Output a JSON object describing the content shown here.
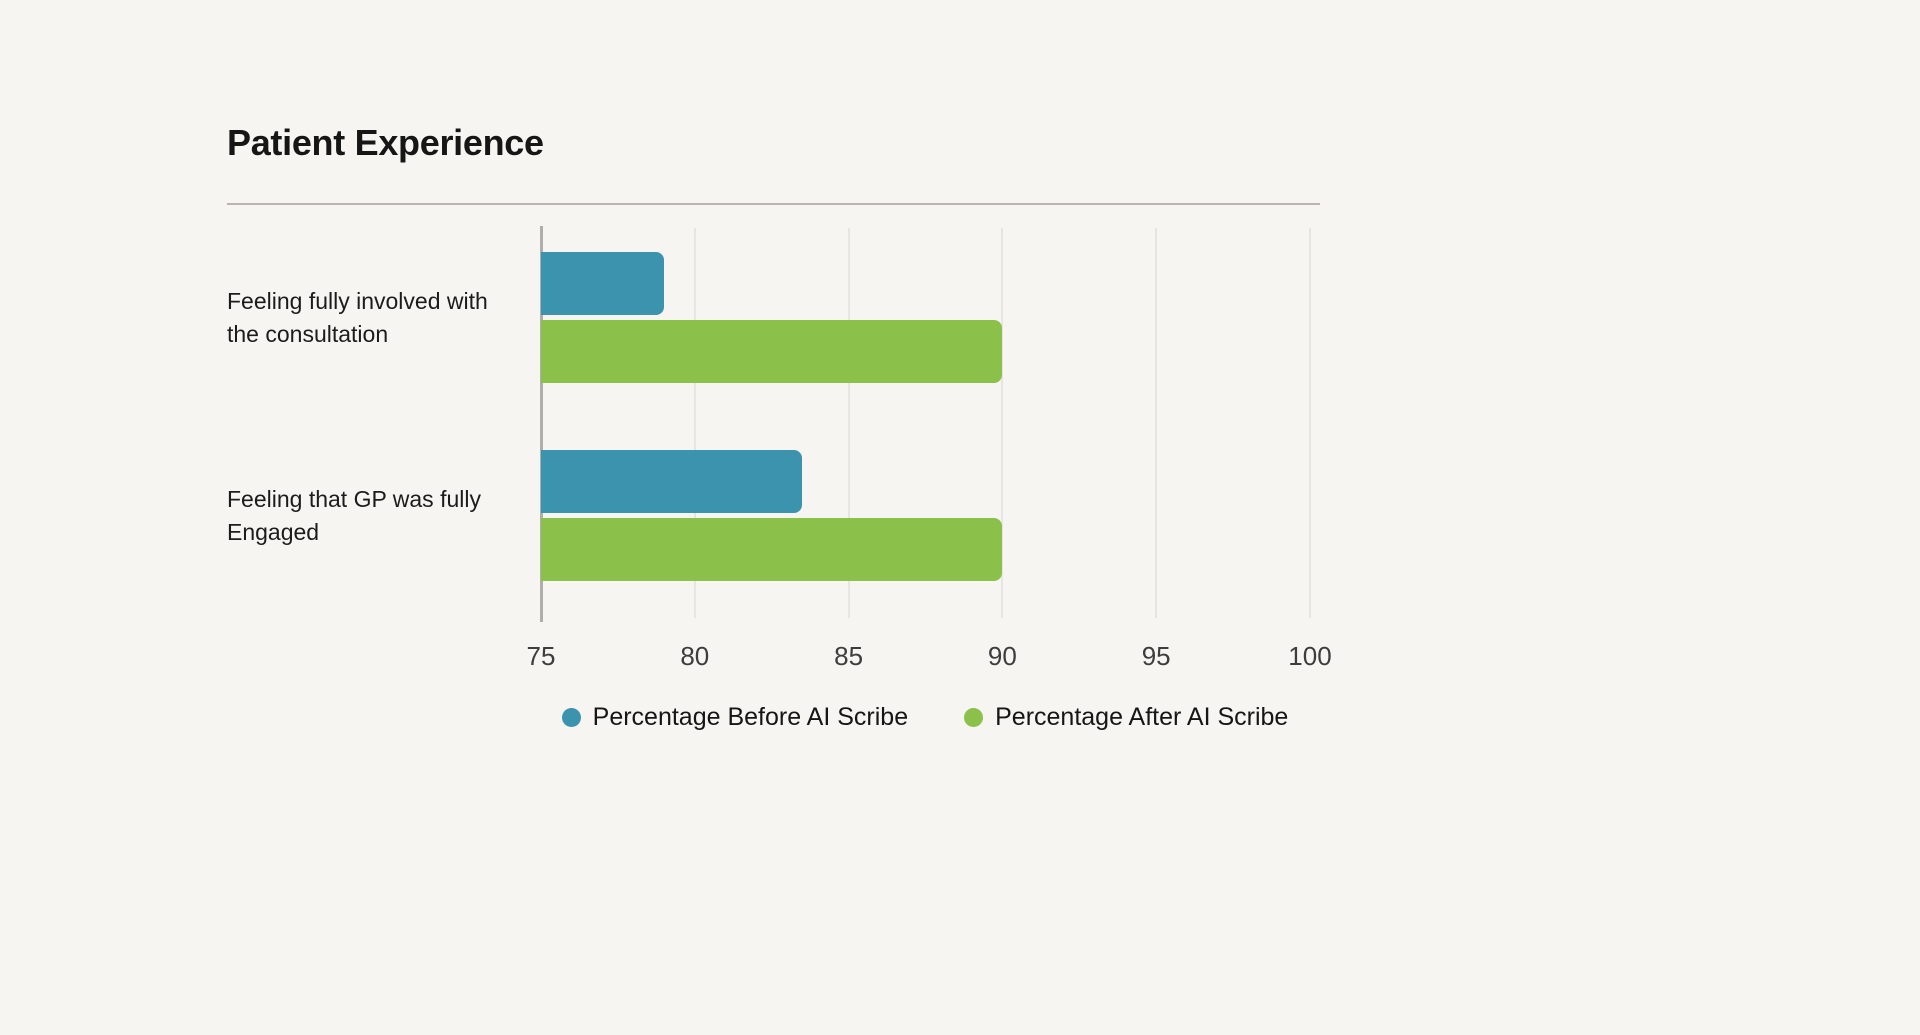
{
  "chart_data": {
    "type": "bar",
    "orientation": "horizontal",
    "title": "Patient Experience",
    "categories": [
      "Feeling fully involved with the consultation",
      "Feeling that GP was fully Engaged"
    ],
    "series": [
      {
        "name": "Percentage Before AI Scribe",
        "color": "#3b93ae",
        "values": [
          79,
          83.5
        ]
      },
      {
        "name": "Percentage After AI Scribe",
        "color": "#8bc04b",
        "values": [
          90,
          90
        ]
      }
    ],
    "xlim": [
      75,
      100
    ],
    "xticks": [
      75,
      80,
      85,
      90,
      95,
      100
    ],
    "grid": true,
    "legend_position": "bottom",
    "background": "#f7f5f2"
  }
}
